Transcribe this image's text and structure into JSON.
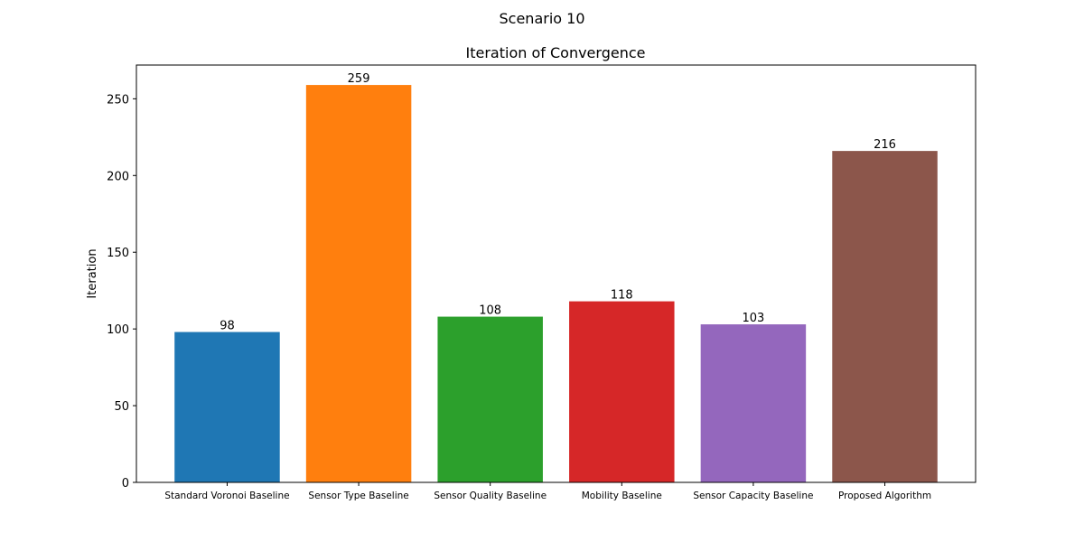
{
  "figure": {
    "suptitle": "Scenario 10"
  },
  "chart_data": {
    "type": "bar",
    "title": "Iteration of Convergence",
    "xlabel": "",
    "ylabel": "Iteration",
    "categories": [
      "Standard Voronoi Baseline",
      "Sensor Type Baseline",
      "Sensor Quality Baseline",
      "Mobility Baseline",
      "Sensor Capacity Baseline",
      "Proposed Algorithm"
    ],
    "values": [
      98,
      259,
      108,
      118,
      103,
      216
    ],
    "data_labels": [
      "98",
      "259",
      "108",
      "118",
      "103",
      "216"
    ],
    "colors": [
      "#1f77b4",
      "#ff7f0e",
      "#2ca02c",
      "#d62728",
      "#9467bd",
      "#8c564b"
    ],
    "ylim": [
      0,
      272
    ],
    "yticks": [
      0,
      50,
      100,
      150,
      200,
      250
    ],
    "grid": false,
    "legend": "none"
  }
}
